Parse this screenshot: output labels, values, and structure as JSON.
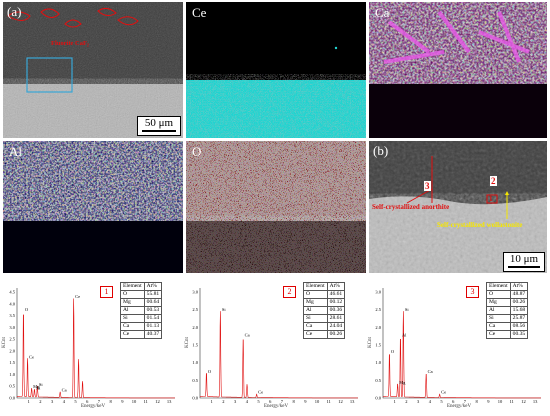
{
  "panels": {
    "a": {
      "label": "(a)",
      "annotation": "Fluorite CaF₂",
      "scale_bar": "50 μm"
    },
    "ce": {
      "label": "Ce"
    },
    "ca": {
      "label": "Ca"
    },
    "al": {
      "label": "Al"
    },
    "o": {
      "label": "O"
    },
    "b": {
      "label": "(b)",
      "scale_bar": "10 μm",
      "anorthite": "Self-crystallized anorthite",
      "wollastonite": "Self-crystallized wollastonite",
      "point1": "1",
      "point2": "2",
      "point3": "3"
    }
  },
  "colors": {
    "ce": "#21d4d0",
    "ca": "#c81ec8",
    "al": "#1a28e6",
    "o": "#d21e1e",
    "sem": "#b4b4b4",
    "annotation": "#e01010",
    "wollastonite": "#f5e600"
  },
  "eds": [
    {
      "index": "1",
      "ylabel": "KCnt",
      "xlabel": "Energy/keV",
      "header": [
        "Element",
        "At%"
      ],
      "rows": [
        [
          "O",
          "55.81"
        ],
        [
          "Mg",
          "00.64"
        ],
        [
          "Al",
          "00.53"
        ],
        [
          "Si",
          "01.54"
        ],
        [
          "Ca",
          "01.13"
        ],
        [
          "Ce",
          "40.37"
        ]
      ],
      "yticks": [
        "0.0",
        "0.5",
        "1.0",
        "1.5",
        "2.0",
        "2.5",
        "3.0",
        "3.5",
        "4.0",
        "4.5"
      ],
      "xticks": [
        "1",
        "2",
        "3",
        "4",
        "5",
        "6",
        "7",
        "8",
        "9",
        "10",
        "11",
        "12",
        "13"
      ],
      "peaks": [
        "O",
        "Ce",
        "Mg",
        "Al",
        "Si",
        "Ca",
        "Ce"
      ]
    },
    {
      "index": "2",
      "ylabel": "KCnt",
      "xlabel": "Energy/keV",
      "header": [
        "Element",
        "At%"
      ],
      "rows": [
        [
          "O",
          "46.61"
        ],
        [
          "Mg",
          "00.12"
        ],
        [
          "Al",
          "00.36"
        ],
        [
          "Si",
          "28.61"
        ],
        [
          "Ca",
          "24.04"
        ],
        [
          "Ce",
          "00.26"
        ]
      ],
      "yticks": [
        "0.0",
        "0.5",
        "1.0",
        "1.5",
        "2.0",
        "2.5",
        "3.0"
      ],
      "xticks": [
        "1",
        "2",
        "3",
        "4",
        "5",
        "6",
        "7",
        "8",
        "9",
        "10",
        "11",
        "12",
        "13"
      ],
      "peaks": [
        "O",
        "Si",
        "Ca",
        "Ce"
      ]
    },
    {
      "index": "3",
      "ylabel": "KCnt",
      "xlabel": "Energy/keV",
      "header": [
        "Element",
        "At%"
      ],
      "rows": [
        [
          "O",
          "48.87"
        ],
        [
          "Mg",
          "00.26"
        ],
        [
          "Al",
          "15.68"
        ],
        [
          "Si",
          "25.87"
        ],
        [
          "Ca",
          "08.56"
        ],
        [
          "Ce",
          "00.35"
        ]
      ],
      "yticks": [
        "0.0",
        "0.5",
        "1.0",
        "1.5",
        "2.0",
        "2.5",
        "3.0"
      ],
      "xticks": [
        "1",
        "2",
        "3",
        "4",
        "5",
        "6",
        "7",
        "8",
        "9",
        "10",
        "11",
        "12",
        "13"
      ],
      "peaks": [
        "O",
        "Al",
        "Si",
        "Mg",
        "Ca",
        "Ce"
      ]
    }
  ]
}
